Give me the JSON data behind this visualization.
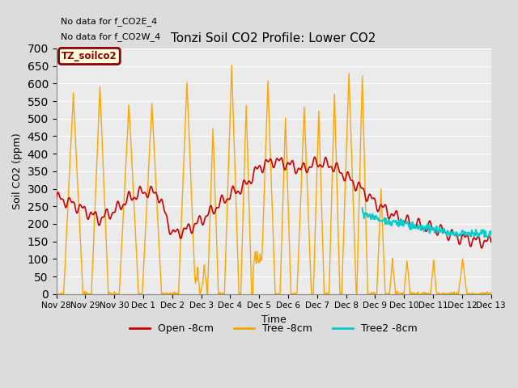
{
  "title": "Tonzi Soil CO2 Profile: Lower CO2",
  "ylabel": "Soil CO2 (ppm)",
  "xlabel": "Time",
  "annotations": [
    "No data for f_CO2E_4",
    "No data for f_CO2W_4"
  ],
  "legend_label": "TZ_soilco2",
  "line_labels": [
    "Open -8cm",
    "Tree -8cm",
    "Tree2 -8cm"
  ],
  "line_colors": [
    "#cc0000",
    "#ffa500",
    "#00cccc"
  ],
  "ylim": [
    0,
    700
  ],
  "yticks": [
    0,
    50,
    100,
    150,
    200,
    250,
    300,
    350,
    400,
    450,
    500,
    550,
    600,
    650,
    700
  ],
  "xtick_labels": [
    "Nov 28",
    "Nov 29",
    "Nov 30",
    "Dec 1",
    "Dec 2",
    "Dec 3",
    "Dec 4",
    "Dec 5",
    "Dec 6",
    "Dec 7",
    "Dec 8",
    "Dec 9",
    "Dec 10",
    "Dec 11",
    "Dec 12",
    "Dec 13"
  ],
  "bg_color": "#dcdcdc",
  "plot_bg": "#ebebeb",
  "figsize": [
    6.4,
    4.8
  ],
  "dpi": 100
}
